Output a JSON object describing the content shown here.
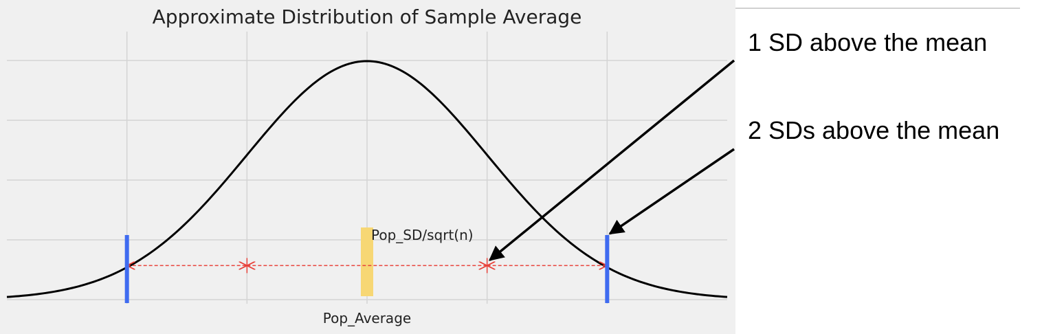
{
  "chart_data": {
    "type": "line",
    "title": "Approximate Distribution of Sample Average",
    "xlabel": "",
    "ylabel": "",
    "xlim": [
      -3,
      3
    ],
    "ylim": [
      0,
      0.4
    ],
    "grid": true,
    "x_gridlines": [
      -2,
      -1,
      0,
      1,
      2
    ],
    "y_gridlines": [
      0,
      0.1,
      0.2,
      0.3,
      0.4
    ],
    "series": [
      {
        "curve": "normal",
        "mean": 0,
        "sd": 1,
        "color": "#000000"
      }
    ],
    "x_tick_labels": [
      {
        "x": 0,
        "label": "Pop_Average"
      }
    ],
    "inline_labels": [
      {
        "x": 0,
        "y": 0.11,
        "text": "Pop_SD/sqrt(n)"
      }
    ],
    "markers": [
      {
        "kind": "mean",
        "x": 0,
        "color": "#f7d774"
      },
      {
        "kind": "two-sd",
        "x": -2,
        "color": "#3f6bf0"
      },
      {
        "kind": "two-sd",
        "x": 2,
        "color": "#3f6bf0"
      }
    ],
    "sd_arrows": {
      "color": "#e8413a",
      "y": 0.057,
      "segments": [
        [
          -2,
          -1
        ],
        [
          -1,
          1
        ],
        [
          1,
          2
        ]
      ]
    },
    "background": "#f0f0f0",
    "grid_color": "#d4d4d4"
  },
  "annotations": [
    {
      "text": "1 SD above the mean",
      "target_x": 1
    },
    {
      "text": "2 SDs above the mean",
      "target_x": 2
    }
  ]
}
